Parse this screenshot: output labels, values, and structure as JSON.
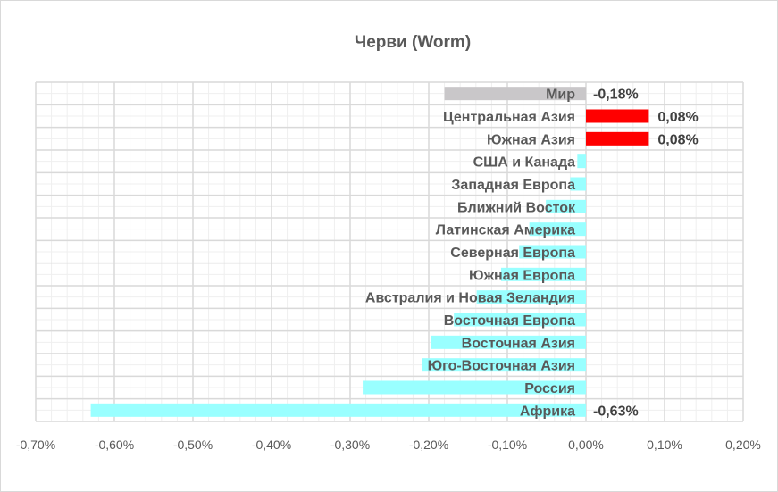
{
  "chart_data": {
    "type": "bar",
    "orientation": "horizontal",
    "title": "Черви (Worm)",
    "xlabel": "",
    "ylabel": "",
    "xlim": [
      -0.7,
      0.2
    ],
    "x_ticks": [
      "-0,70%",
      "-0,60%",
      "-0,50%",
      "-0,40%",
      "-0,30%",
      "-0,20%",
      "-0,10%",
      "0,00%",
      "0,10%",
      "0,20%"
    ],
    "grid": true,
    "legend": "none",
    "categories": [
      "Мир",
      "Центральная Азия",
      "Южная Азия",
      "США и Канада",
      "Западная Европа",
      "Ближний Восток",
      "Латинская Америка",
      "Северная Европа",
      "Южная Европа",
      "Австралия и Новая Зеландия",
      "Восточная Европа",
      "Восточная Азия",
      "Юго-Восточная Азия",
      "Россия",
      "Африка"
    ],
    "values": [
      -0.18,
      0.08,
      0.08,
      -0.011,
      -0.02,
      -0.051,
      -0.072,
      -0.085,
      -0.108,
      -0.139,
      -0.168,
      -0.197,
      -0.208,
      -0.284,
      -0.63
    ],
    "data_labels": [
      "-0,18%",
      "0,08%",
      "0,08%",
      "",
      "",
      "",
      "",
      "",
      "",
      "",
      "",
      "",
      "",
      "",
      "-0,63%"
    ],
    "colors": {
      "world": "#c9c7c9",
      "positive": "#ff0000",
      "negative": "#99ffff",
      "grid_major": "#d9d9d9",
      "grid_minor": "#efefef"
    }
  }
}
